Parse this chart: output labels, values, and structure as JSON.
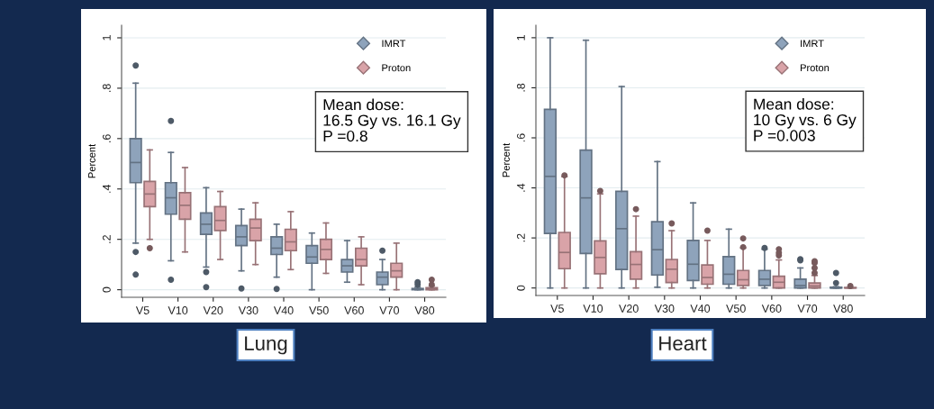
{
  "chart_data": [
    {
      "type": "box",
      "title": "Lung",
      "ylabel": "Percent",
      "categories": [
        "V5",
        "V10",
        "V20",
        "V30",
        "V40",
        "V50",
        "V60",
        "V70",
        "V80"
      ],
      "ylim": [
        -0.03,
        1.05
      ],
      "yticks": [
        0,
        {
          "value": 0.2,
          "label": ".2"
        },
        {
          "value": 0.4,
          "label": ".4"
        },
        {
          "value": 0.6,
          "label": ".6"
        },
        {
          "value": 0.8,
          "label": ".8"
        },
        1
      ],
      "grid": "y",
      "legend": "top right",
      "annotations": [
        "Mean dose:\n16.5 Gy vs. 16.1 Gy\nP =0.8"
      ],
      "series": [
        {
          "name": "IMRT",
          "color": "#8ea3bb",
          "boxes": [
            {
              "low": 0.185,
              "q1": 0.425,
              "median": 0.505,
              "q3": 0.6,
              "high": 0.82,
              "outliers": [
                0.15,
                0.06,
                0.89
              ]
            },
            {
              "low": 0.115,
              "q1": 0.3,
              "median": 0.365,
              "q3": 0.425,
              "high": 0.545,
              "outliers": [
                0.04,
                0.67
              ]
            },
            {
              "low": 0.09,
              "q1": 0.22,
              "median": 0.26,
              "q3": 0.305,
              "high": 0.405,
              "outliers": [
                0.07,
                0.01
              ]
            },
            {
              "low": 0.075,
              "q1": 0.175,
              "median": 0.21,
              "q3": 0.255,
              "high": 0.32,
              "outliers": [
                0.005
              ]
            },
            {
              "low": 0.05,
              "q1": 0.14,
              "median": 0.165,
              "q3": 0.21,
              "high": 0.26,
              "outliers": [
                0.003
              ]
            },
            {
              "low": 0.0,
              "q1": 0.105,
              "median": 0.13,
              "q3": 0.175,
              "high": 0.225
            },
            {
              "low": 0.03,
              "q1": 0.07,
              "median": 0.095,
              "q3": 0.12,
              "high": 0.195
            },
            {
              "low": 0.0,
              "q1": 0.02,
              "median": 0.05,
              "q3": 0.07,
              "high": 0.12,
              "outliers": [
                0.155
              ]
            },
            {
              "low": 0.0,
              "q1": 0.0,
              "median": 0.002,
              "q3": 0.005,
              "high": 0.01,
              "outliers": [
                0.02,
                0.03
              ]
            }
          ]
        },
        {
          "name": "Proton",
          "color": "#d9a3a8",
          "boxes": [
            {
              "low": 0.2,
              "q1": 0.33,
              "median": 0.38,
              "q3": 0.43,
              "high": 0.555,
              "outliers": [
                0.165
              ]
            },
            {
              "low": 0.15,
              "q1": 0.28,
              "median": 0.335,
              "q3": 0.385,
              "high": 0.485
            },
            {
              "low": 0.12,
              "q1": 0.235,
              "median": 0.275,
              "q3": 0.33,
              "high": 0.39
            },
            {
              "low": 0.1,
              "q1": 0.195,
              "median": 0.245,
              "q3": 0.28,
              "high": 0.345
            },
            {
              "low": 0.08,
              "q1": 0.155,
              "median": 0.19,
              "q3": 0.24,
              "high": 0.31
            },
            {
              "low": 0.065,
              "q1": 0.12,
              "median": 0.16,
              "q3": 0.2,
              "high": 0.265
            },
            {
              "low": 0.02,
              "q1": 0.095,
              "median": 0.12,
              "q3": 0.165,
              "high": 0.21
            },
            {
              "low": 0.0,
              "q1": 0.05,
              "median": 0.075,
              "q3": 0.105,
              "high": 0.185
            },
            {
              "low": 0.0,
              "q1": 0.0,
              "median": 0.003,
              "q3": 0.008,
              "high": 0.015,
              "outliers": [
                0.02,
                0.04
              ]
            }
          ]
        }
      ]
    },
    {
      "type": "box",
      "title": "Heart",
      "ylabel": "Percent",
      "categories": [
        "V5",
        "V10",
        "V20",
        "V30",
        "V40",
        "V50",
        "V60",
        "V70",
        "V80"
      ],
      "ylim": [
        -0.03,
        1.05
      ],
      "yticks": [
        0,
        {
          "value": 0.2,
          "label": ".2"
        },
        {
          "value": 0.4,
          "label": ".4"
        },
        {
          "value": 0.6,
          "label": ".6"
        },
        {
          "value": 0.8,
          "label": ".8"
        },
        1
      ],
      "grid": "y",
      "legend": "top right",
      "annotations": [
        "Mean dose:\n10 Gy vs. 6 Gy\nP =0.003"
      ],
      "series": [
        {
          "name": "IMRT",
          "color": "#8ea3bb",
          "boxes": [
            {
              "low": 0.0,
              "q1": 0.218,
              "median": 0.446,
              "q3": 0.714,
              "high": 1.0
            },
            {
              "low": 0.0,
              "q1": 0.138,
              "median": 0.36,
              "q3": 0.551,
              "high": 0.99
            },
            {
              "low": 0.0,
              "q1": 0.074,
              "median": 0.237,
              "q3": 0.386,
              "high": 0.805
            },
            {
              "low": 0.003,
              "q1": 0.052,
              "median": 0.153,
              "q3": 0.265,
              "high": 0.505
            },
            {
              "low": 0.0,
              "q1": 0.03,
              "median": 0.095,
              "q3": 0.19,
              "high": 0.34
            },
            {
              "low": 0.0,
              "q1": 0.015,
              "median": 0.055,
              "q3": 0.125,
              "high": 0.235
            },
            {
              "low": 0.0,
              "q1": 0.01,
              "median": 0.035,
              "q3": 0.07,
              "high": 0.155,
              "outliers": [
                0.16
              ]
            },
            {
              "low": 0.0,
              "q1": 0.0,
              "median": 0.01,
              "q3": 0.035,
              "high": 0.08,
              "outliers": [
                0.11,
                0.115
              ]
            },
            {
              "low": 0.0,
              "q1": 0.0,
              "median": 0.0,
              "q3": 0.003,
              "high": 0.005,
              "outliers": [
                0.02,
                0.06
              ]
            }
          ]
        },
        {
          "name": "Proton",
          "color": "#d9a3a8",
          "boxes": [
            {
              "low": 0.0,
              "q1": 0.077,
              "median": 0.142,
              "q3": 0.222,
              "high": 0.445,
              "outliers": [
                0.45
              ]
            },
            {
              "low": 0.0,
              "q1": 0.057,
              "median": 0.122,
              "q3": 0.188,
              "high": 0.376,
              "outliers": [
                0.388
              ]
            },
            {
              "low": 0.0,
              "q1": 0.035,
              "median": 0.094,
              "q3": 0.145,
              "high": 0.287,
              "outliers": [
                0.315
              ]
            },
            {
              "low": 0.0,
              "q1": 0.022,
              "median": 0.075,
              "q3": 0.114,
              "high": 0.229,
              "outliers": [
                0.258
              ]
            },
            {
              "low": 0.0,
              "q1": 0.015,
              "median": 0.042,
              "q3": 0.092,
              "high": 0.19,
              "outliers": [
                0.229
              ]
            },
            {
              "low": 0.0,
              "q1": 0.01,
              "median": 0.033,
              "q3": 0.07,
              "high": 0.16,
              "outliers": [
                0.163,
                0.198
              ]
            },
            {
              "low": 0.0,
              "q1": 0.0,
              "median": 0.023,
              "q3": 0.047,
              "high": 0.112,
              "outliers": [
                0.13,
                0.14,
                0.155
              ]
            },
            {
              "low": 0.0,
              "q1": 0.0,
              "median": 0.008,
              "q3": 0.02,
              "high": 0.05,
              "outliers": [
                0.06,
                0.08,
                0.1,
                0.107
              ]
            },
            {
              "low": 0.0,
              "q1": 0.0,
              "median": 0.0,
              "q3": 0.002,
              "high": 0.003,
              "outliers": [
                0.008
              ]
            }
          ]
        }
      ]
    }
  ]
}
